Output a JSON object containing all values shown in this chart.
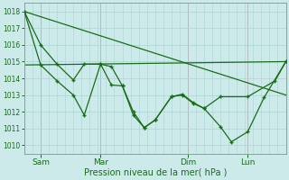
{
  "background_color": "#cceaea",
  "grid_color": "#aad4d4",
  "line_color": "#1a6b1a",
  "vline_color": "#cc8888",
  "xlabel": "Pression niveau de la mer( hPa )",
  "ylim": [
    1009.5,
    1018.5
  ],
  "yticks": [
    1010,
    1011,
    1012,
    1013,
    1014,
    1015,
    1016,
    1017,
    1018
  ],
  "xtick_labels": [
    "Sam",
    "Mar",
    "Dim",
    "Lun"
  ],
  "xtick_positions": [
    6,
    28,
    60,
    82
  ],
  "xlim": [
    0,
    96
  ],
  "vlines_x": [
    6,
    28,
    60,
    82
  ],
  "series1_x": [
    0,
    6,
    12,
    18,
    22,
    28,
    32,
    36,
    40,
    44,
    48,
    54,
    58,
    62,
    66,
    72,
    82,
    92,
    96
  ],
  "series1_y": [
    1018.0,
    1016.0,
    1014.85,
    1013.9,
    1014.85,
    1014.85,
    1013.6,
    1013.55,
    1012.0,
    1011.05,
    1011.5,
    1012.9,
    1013.05,
    1012.55,
    1012.2,
    1012.9,
    1012.9,
    1013.85,
    1015.0
  ],
  "series2_x": [
    0,
    6,
    12,
    18,
    22,
    28,
    32,
    36,
    40,
    44,
    48,
    54,
    58,
    62,
    66,
    72,
    76,
    82,
    88,
    96
  ],
  "series2_y": [
    1018.0,
    1014.8,
    1013.85,
    1013.0,
    1011.8,
    1014.85,
    1014.7,
    1013.55,
    1011.8,
    1011.05,
    1011.5,
    1012.9,
    1013.0,
    1012.5,
    1012.2,
    1011.1,
    1010.2,
    1010.8,
    1012.85,
    1015.0
  ],
  "trend1_x": [
    0,
    96
  ],
  "trend1_y": [
    1018.0,
    1013.0
  ],
  "trend2_x": [
    0,
    96
  ],
  "trend2_y": [
    1014.8,
    1015.0
  ]
}
